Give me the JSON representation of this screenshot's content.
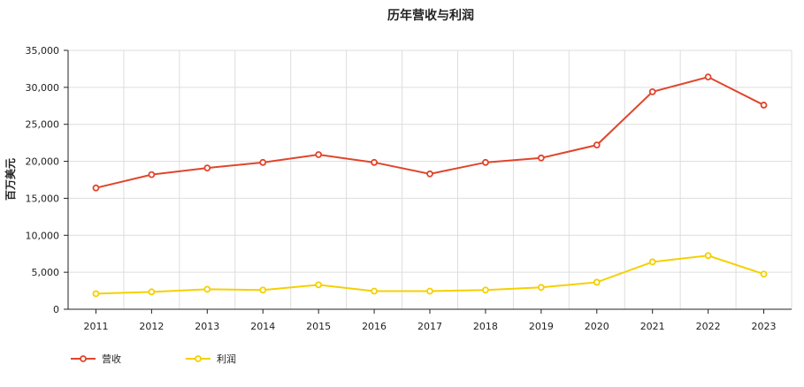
{
  "chart_data": {
    "type": "line",
    "title": "历年营收与利润",
    "xlabel": "",
    "ylabel": "百万美元",
    "categories": [
      "2011",
      "2012",
      "2013",
      "2014",
      "2015",
      "2016",
      "2017",
      "2018",
      "2019",
      "2020",
      "2021",
      "2022",
      "2023"
    ],
    "series": [
      {
        "name": "营收",
        "color": "#e0452c",
        "values": [
          16400,
          18200,
          19100,
          19850,
          20900,
          19850,
          18300,
          19850,
          20450,
          22200,
          29400,
          31400,
          27600
        ]
      },
      {
        "name": "利润",
        "color": "#f5d000",
        "values": [
          2100,
          2350,
          2700,
          2600,
          3300,
          2450,
          2450,
          2600,
          2950,
          3650,
          6400,
          7250,
          4750
        ]
      }
    ],
    "ylim": [
      0,
      35000
    ],
    "yticks": [
      0,
      5000,
      10000,
      15000,
      20000,
      25000,
      30000,
      35000
    ],
    "ytick_labels": [
      "0",
      "5,000",
      "10,000",
      "15,000",
      "20,000",
      "25,000",
      "30,000",
      "35,000"
    ],
    "grid": true,
    "legend_position": "bottom-left"
  }
}
